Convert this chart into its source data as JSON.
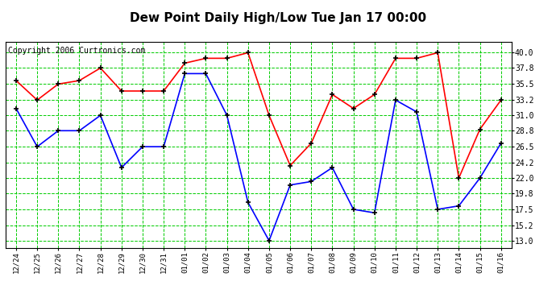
{
  "title": "Dew Point Daily High/Low Tue Jan 17 00:00",
  "copyright": "Copyright 2006 Curtronics.com",
  "labels": [
    "12/24",
    "12/25",
    "12/26",
    "12/27",
    "12/28",
    "12/29",
    "12/30",
    "12/31",
    "01/01",
    "01/02",
    "01/03",
    "01/04",
    "01/05",
    "01/06",
    "01/07",
    "01/08",
    "01/09",
    "01/10",
    "01/11",
    "01/12",
    "01/13",
    "01/14",
    "01/15",
    "01/16"
  ],
  "high_values": [
    36.0,
    33.2,
    35.5,
    36.0,
    37.8,
    34.5,
    34.5,
    34.5,
    38.5,
    39.2,
    39.2,
    40.0,
    31.0,
    23.8,
    27.0,
    34.0,
    32.0,
    34.0,
    39.2,
    39.2,
    40.0,
    22.0,
    29.0,
    33.2
  ],
  "low_values": [
    32.0,
    26.5,
    28.8,
    28.8,
    31.0,
    23.5,
    26.5,
    26.5,
    37.0,
    37.0,
    31.0,
    18.5,
    13.0,
    21.0,
    21.5,
    23.5,
    17.5,
    17.0,
    33.2,
    31.5,
    17.5,
    18.0,
    22.0,
    27.0
  ],
  "high_color": "#ff0000",
  "low_color": "#0000ff",
  "bg_color": "#ffffff",
  "plot_bg_color": "#ffffff",
  "grid_color": "#00cc00",
  "title_fontsize": 11,
  "copyright_fontsize": 7,
  "yticks": [
    13.0,
    15.2,
    17.5,
    19.8,
    22.0,
    24.2,
    26.5,
    28.8,
    31.0,
    33.2,
    35.5,
    37.8,
    40.0
  ],
  "ylim": [
    12.0,
    41.5
  ]
}
